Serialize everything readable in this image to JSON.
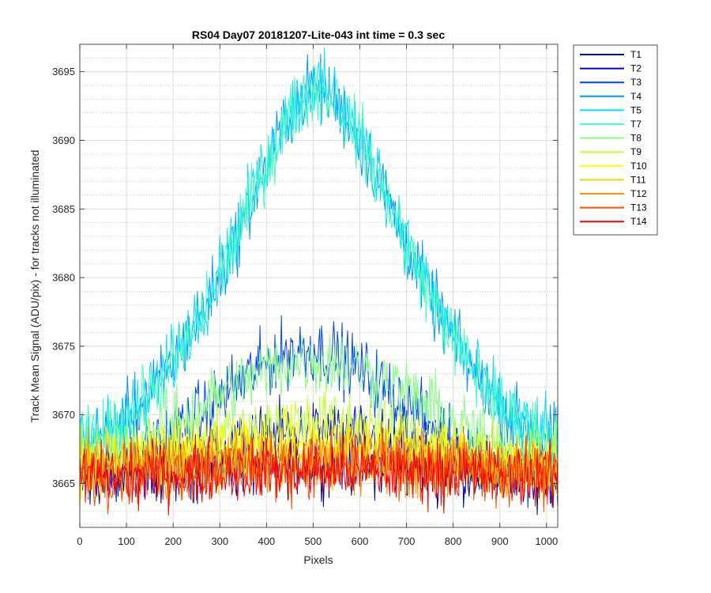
{
  "chart_data": {
    "type": "line",
    "title": "RS04 Day07 20181207-Lite-043 int time = 0.3 sec",
    "xlabel": "Pixels",
    "ylabel": "Track Mean Signal (ADU/pix) - for tracks not illuminated",
    "xlim": [
      0,
      1024
    ],
    "ylim": [
      3661.8,
      3697.0
    ],
    "xticks": [
      0,
      100,
      200,
      300,
      400,
      500,
      600,
      700,
      800,
      900,
      1000
    ],
    "yticks": [
      3665,
      3670,
      3675,
      3680,
      3685,
      3690,
      3695
    ],
    "grid": true,
    "minor_grid_y": true,
    "legend_position": "outside-right",
    "x": [
      0,
      50,
      100,
      150,
      200,
      250,
      300,
      350,
      400,
      450,
      500,
      550,
      600,
      650,
      700,
      750,
      800,
      850,
      900,
      950,
      1000,
      1024
    ],
    "series": [
      {
        "name": "T1",
        "color": "#00008f",
        "values": [
          3665.6,
          3665.6,
          3665.7,
          3665.8,
          3666.0,
          3666.1,
          3666.2,
          3666.3,
          3666.4,
          3666.5,
          3666.5,
          3666.5,
          3666.4,
          3666.3,
          3666.2,
          3666.1,
          3666.0,
          3665.9,
          3665.8,
          3665.7,
          3665.6,
          3665.6
        ]
      },
      {
        "name": "T2",
        "color": "#0000d0",
        "values": [
          3665.8,
          3665.9,
          3666.0,
          3666.3,
          3666.6,
          3667.0,
          3667.5,
          3668.0,
          3668.4,
          3668.7,
          3668.8,
          3668.7,
          3668.4,
          3668.0,
          3667.5,
          3667.0,
          3666.6,
          3666.3,
          3666.0,
          3665.9,
          3665.8,
          3665.8
        ]
      },
      {
        "name": "T3",
        "color": "#0040ff",
        "values": [
          3666.0,
          3666.3,
          3666.8,
          3667.6,
          3668.6,
          3669.8,
          3671.2,
          3672.6,
          3673.8,
          3674.6,
          3674.8,
          3674.3,
          3673.3,
          3672.0,
          3670.6,
          3669.3,
          3668.2,
          3667.3,
          3666.7,
          3666.3,
          3666.1,
          3666.0
        ]
      },
      {
        "name": "T4",
        "color": "#0096ff",
        "values": [
          3667.6,
          3668.6,
          3669.8,
          3671.4,
          3673.8,
          3676.8,
          3680.0,
          3684.0,
          3688.2,
          3692.0,
          3694.0,
          3692.8,
          3690.0,
          3686.4,
          3682.4,
          3678.6,
          3675.6,
          3672.8,
          3670.6,
          3669.2,
          3668.4,
          3668.2
        ]
      },
      {
        "name": "T5",
        "color": "#10d8ff",
        "values": [
          3667.8,
          3668.6,
          3669.9,
          3671.6,
          3674.0,
          3677.0,
          3680.4,
          3684.4,
          3688.6,
          3692.2,
          3694.2,
          3693.2,
          3690.4,
          3686.8,
          3682.8,
          3679.0,
          3675.8,
          3673.0,
          3670.8,
          3669.4,
          3668.6,
          3668.4
        ]
      },
      {
        "name": "T7",
        "color": "#40ffc0",
        "values": [
          3667.8,
          3668.4,
          3669.6,
          3671.2,
          3673.6,
          3676.6,
          3680.2,
          3684.2,
          3688.2,
          3691.8,
          3693.8,
          3693.0,
          3690.2,
          3686.6,
          3682.6,
          3678.8,
          3675.6,
          3672.8,
          3670.6,
          3669.3,
          3668.5,
          3668.3
        ]
      },
      {
        "name": "T8",
        "color": "#86ff80",
        "values": [
          3666.6,
          3667.0,
          3667.6,
          3668.4,
          3669.4,
          3670.4,
          3671.5,
          3672.4,
          3673.2,
          3673.8,
          3674.0,
          3673.8,
          3673.3,
          3672.5,
          3671.6,
          3670.6,
          3669.6,
          3668.6,
          3667.8,
          3667.2,
          3666.8,
          3666.6
        ]
      },
      {
        "name": "T9",
        "color": "#c0ff40",
        "values": [
          3666.4,
          3666.6,
          3667.0,
          3667.4,
          3667.8,
          3668.2,
          3668.6,
          3669.0,
          3669.3,
          3669.5,
          3669.6,
          3669.5,
          3669.3,
          3669.0,
          3668.6,
          3668.2,
          3667.8,
          3667.4,
          3667.0,
          3666.7,
          3666.5,
          3666.4
        ]
      },
      {
        "name": "T10",
        "color": "#ffff00",
        "values": [
          3666.3,
          3666.4,
          3666.6,
          3666.8,
          3667.1,
          3667.3,
          3667.6,
          3667.8,
          3668.0,
          3668.1,
          3668.2,
          3668.1,
          3668.0,
          3667.8,
          3667.6,
          3667.3,
          3667.1,
          3666.8,
          3666.6,
          3666.4,
          3666.3,
          3666.3
        ]
      },
      {
        "name": "T11",
        "color": "#ffd000",
        "values": [
          3666.1,
          3666.2,
          3666.3,
          3666.5,
          3666.7,
          3666.8,
          3667.0,
          3667.1,
          3667.2,
          3667.3,
          3667.3,
          3667.3,
          3667.2,
          3667.1,
          3667.0,
          3666.8,
          3666.7,
          3666.5,
          3666.3,
          3666.2,
          3666.1,
          3666.1
        ]
      },
      {
        "name": "T12",
        "color": "#ff9000",
        "values": [
          3665.9,
          3666.0,
          3666.1,
          3666.2,
          3666.3,
          3666.4,
          3666.5,
          3666.6,
          3666.6,
          3666.7,
          3666.7,
          3666.7,
          3666.6,
          3666.6,
          3666.5,
          3666.4,
          3666.3,
          3666.2,
          3666.1,
          3666.0,
          3665.9,
          3665.9
        ]
      },
      {
        "name": "T13",
        "color": "#ff4a00",
        "values": [
          3665.7,
          3665.7,
          3665.8,
          3665.9,
          3666.0,
          3666.0,
          3666.1,
          3666.1,
          3666.2,
          3666.2,
          3666.2,
          3666.2,
          3666.2,
          3666.1,
          3666.1,
          3666.0,
          3666.0,
          3665.9,
          3665.8,
          3665.7,
          3665.7,
          3665.7
        ]
      },
      {
        "name": "T14",
        "color": "#ff0000",
        "values": [
          3665.6,
          3665.6,
          3665.6,
          3665.7,
          3665.7,
          3665.8,
          3665.8,
          3665.8,
          3665.9,
          3665.9,
          3665.9,
          3665.9,
          3665.9,
          3665.8,
          3665.8,
          3665.8,
          3665.7,
          3665.7,
          3665.6,
          3665.6,
          3665.6,
          3665.6
        ]
      }
    ]
  }
}
